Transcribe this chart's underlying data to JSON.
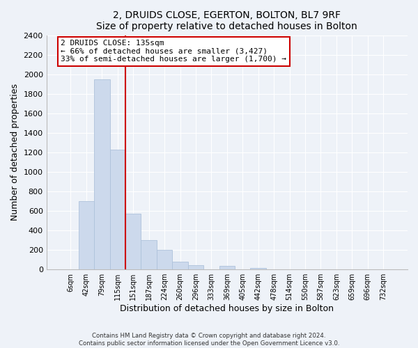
{
  "title": "2, DRUIDS CLOSE, EGERTON, BOLTON, BL7 9RF",
  "subtitle": "Size of property relative to detached houses in Bolton",
  "xlabel": "Distribution of detached houses by size in Bolton",
  "ylabel": "Number of detached properties",
  "bar_labels": [
    "6sqm",
    "42sqm",
    "79sqm",
    "115sqm",
    "151sqm",
    "187sqm",
    "224sqm",
    "260sqm",
    "296sqm",
    "333sqm",
    "369sqm",
    "405sqm",
    "442sqm",
    "478sqm",
    "514sqm",
    "550sqm",
    "587sqm",
    "623sqm",
    "659sqm",
    "696sqm",
    "732sqm"
  ],
  "bar_values": [
    0,
    700,
    1950,
    1230,
    575,
    300,
    200,
    80,
    45,
    0,
    35,
    0,
    15,
    0,
    0,
    0,
    0,
    0,
    0,
    0,
    0
  ],
  "bar_color": "#ccd9ec",
  "bar_edge_color": "#aec2db",
  "vline_color": "#cc0000",
  "ylim": [
    0,
    2400
  ],
  "yticks": [
    0,
    200,
    400,
    600,
    800,
    1000,
    1200,
    1400,
    1600,
    1800,
    2000,
    2200,
    2400
  ],
  "annotation_title": "2 DRUIDS CLOSE: 135sqm",
  "annotation_line1": "← 66% of detached houses are smaller (3,427)",
  "annotation_line2": "33% of semi-detached houses are larger (1,700) →",
  "footer1": "Contains HM Land Registry data © Crown copyright and database right 2024.",
  "footer2": "Contains public sector information licensed under the Open Government Licence v3.0.",
  "background_color": "#eef2f8",
  "grid_color": "#ffffff"
}
